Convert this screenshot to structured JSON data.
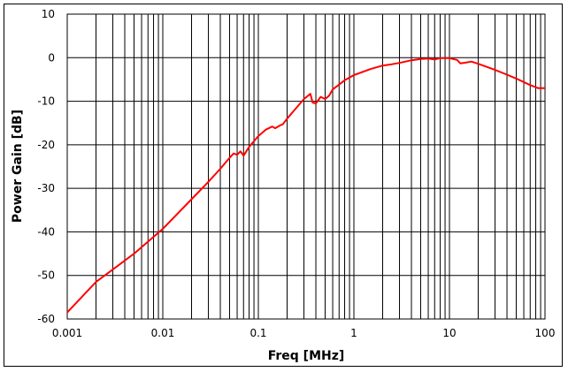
{
  "chart_data": {
    "type": "line",
    "title": "",
    "xlabel": "Freq [MHz]",
    "ylabel": "Power Gain [dB]",
    "x_scale": "log",
    "xlim": [
      0.001,
      100
    ],
    "ylim": [
      -60,
      10
    ],
    "x_ticks": [
      "0.001",
      "0.01",
      "0.1",
      "1",
      "10",
      "100"
    ],
    "y_ticks": [
      "10",
      "0",
      "-10",
      "-20",
      "-30",
      "-40",
      "-50",
      "-60"
    ],
    "grid": true,
    "legend": "none",
    "series": [
      {
        "color": "#ff0000",
        "x": [
          0.001,
          0.002,
          0.005,
          0.01,
          0.02,
          0.03,
          0.04,
          0.05,
          0.055,
          0.06,
          0.065,
          0.07,
          0.08,
          0.1,
          0.12,
          0.14,
          0.15,
          0.17,
          0.18,
          0.2,
          0.25,
          0.3,
          0.35,
          0.37,
          0.4,
          0.45,
          0.5,
          0.55,
          0.6,
          0.8,
          1,
          1.5,
          2,
          2.5,
          3,
          4,
          5,
          6,
          7,
          8,
          10,
          12,
          13,
          15,
          17,
          20,
          30,
          40,
          50,
          70,
          85,
          100
        ],
        "y": [
          -58.5,
          -51.5,
          -45,
          -39.3,
          -32.5,
          -28.5,
          -25.5,
          -23,
          -22,
          -22.3,
          -21.5,
          -22.5,
          -20.5,
          -18,
          -16.5,
          -15.8,
          -16.2,
          -15.5,
          -15.3,
          -14,
          -11.5,
          -9.5,
          -8.3,
          -10.3,
          -10.5,
          -9,
          -9.5,
          -8.7,
          -7.3,
          -5.2,
          -4,
          -2.6,
          -1.8,
          -1.5,
          -1.2,
          -0.6,
          -0.3,
          -0.2,
          -0.4,
          -0.1,
          -0.1,
          -0.5,
          -1.3,
          -1.1,
          -0.9,
          -1.4,
          -2.8,
          -3.9,
          -4.8,
          -6.3,
          -7,
          -7
        ]
      }
    ]
  }
}
